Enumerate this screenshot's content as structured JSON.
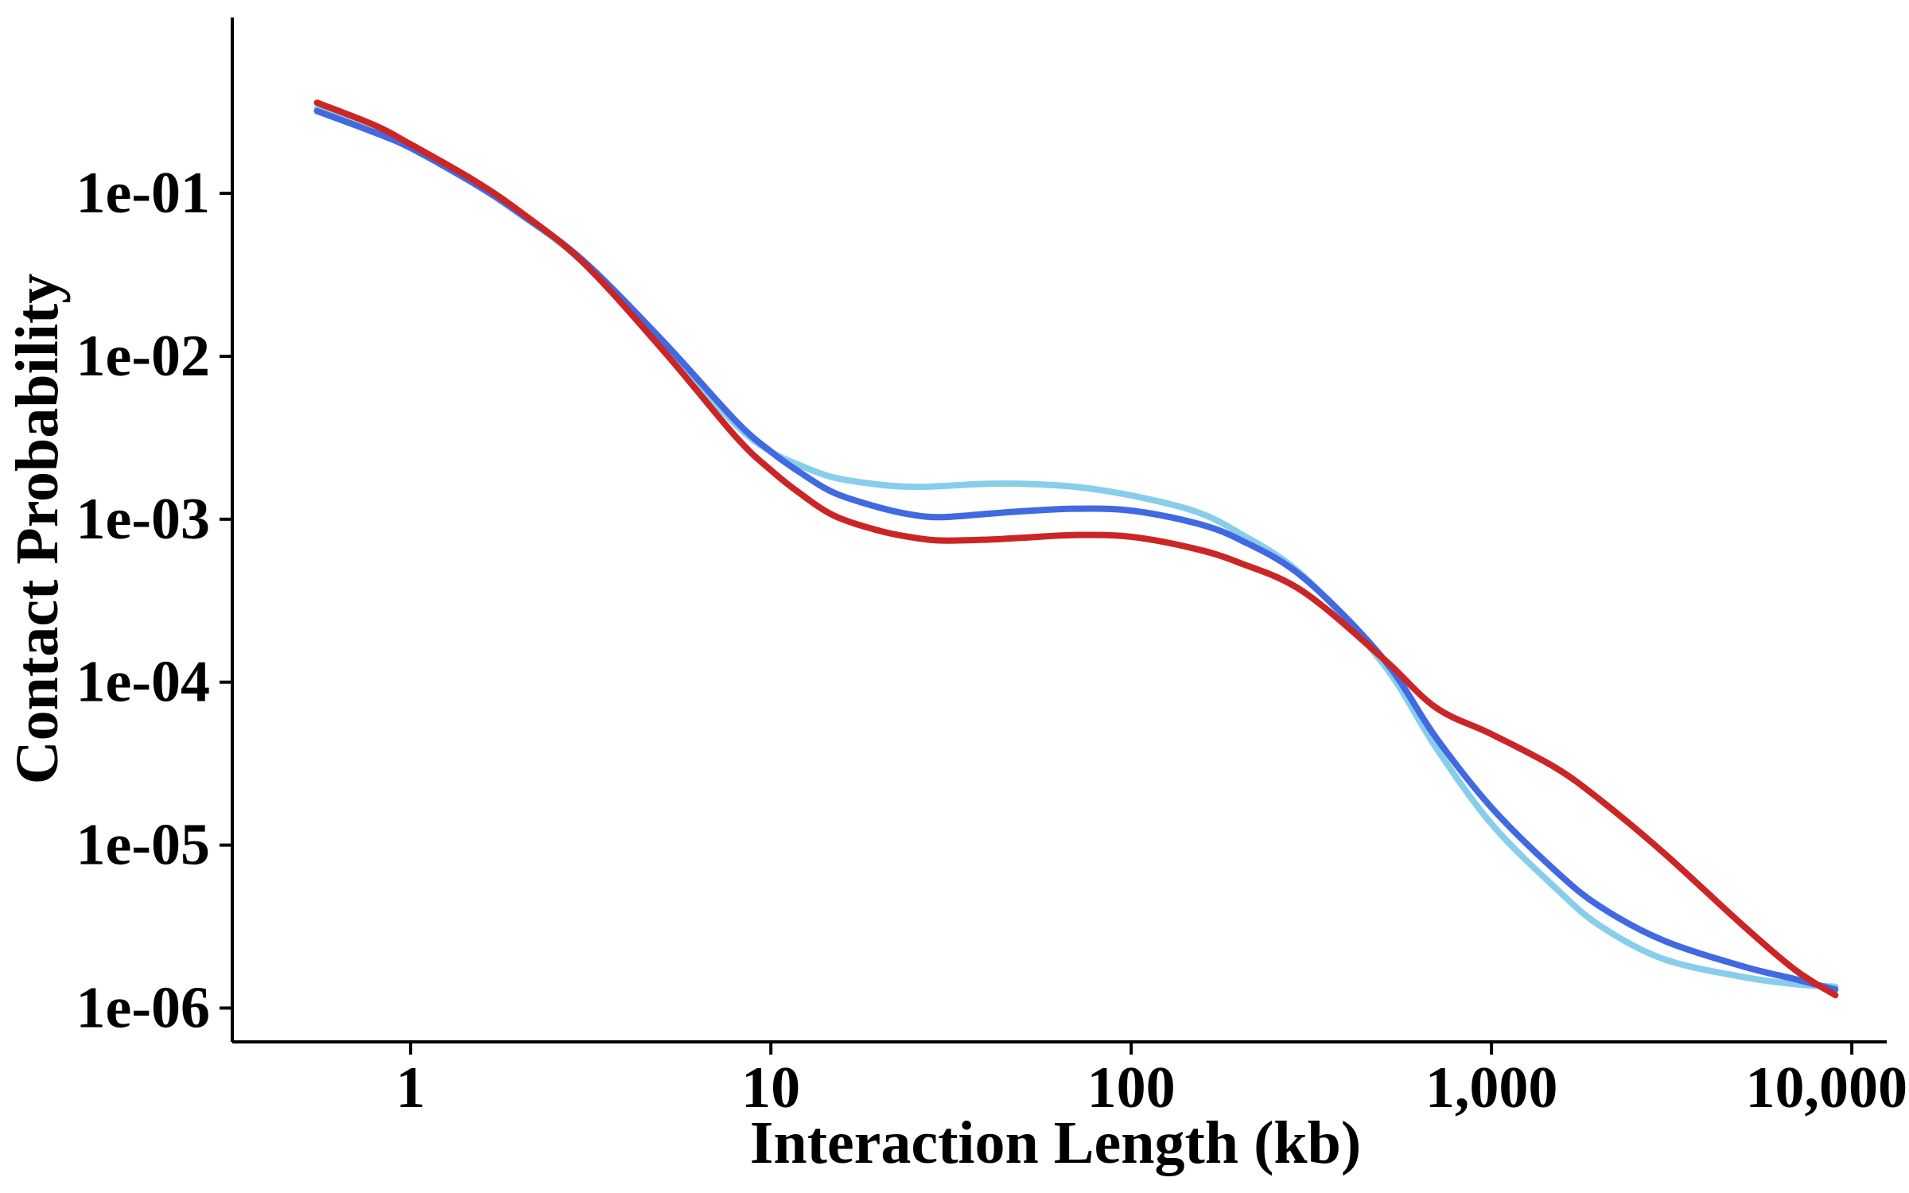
{
  "chart_data": {
    "type": "line",
    "title": "",
    "xlabel": "Interaction Length (kb)",
    "ylabel": "Contact Probability",
    "x_scale": "log",
    "y_scale": "log",
    "xlim": [
      0.32,
      12500
    ],
    "ylim": [
      6.2e-07,
      1.2
    ],
    "grid": false,
    "legend": "none",
    "x_ticks": [
      {
        "value": 1,
        "label": "1"
      },
      {
        "value": 10,
        "label": "10"
      },
      {
        "value": 100,
        "label": "100"
      },
      {
        "value": 1000,
        "label": "1,000"
      },
      {
        "value": 10000,
        "label": "10,000"
      }
    ],
    "y_ticks": [
      {
        "value": 0.1,
        "label": "1e-01"
      },
      {
        "value": 0.01,
        "label": "1e-02"
      },
      {
        "value": 0.001,
        "label": "1e-03"
      },
      {
        "value": 0.0001,
        "label": "1e-04"
      },
      {
        "value": 1e-05,
        "label": "1e-05"
      },
      {
        "value": 1e-06,
        "label": "1e-06"
      }
    ],
    "series": [
      {
        "color": "#87CEEB",
        "x": [
          0.55,
          0.8,
          1,
          1.5,
          2,
          3,
          5,
          8,
          10,
          12,
          15,
          20,
          25,
          30,
          40,
          50,
          70,
          100,
          150,
          200,
          300,
          500,
          700,
          1000,
          1500,
          2000,
          3000,
          5000,
          7000,
          9000
        ],
        "y": [
          0.33,
          0.235,
          0.19,
          0.115,
          0.075,
          0.038,
          0.0115,
          0.0038,
          0.0026,
          0.00215,
          0.0018,
          0.00163,
          0.00158,
          0.0016,
          0.00165,
          0.00165,
          0.00158,
          0.0014,
          0.00112,
          0.00082,
          0.00045,
          0.00013,
          4e-05,
          1.35e-05,
          5.5e-06,
          3.2e-06,
          2e-06,
          1.55e-06,
          1.4e-06,
          1.35e-06
        ]
      },
      {
        "color": "#4169E1",
        "x": [
          0.55,
          0.8,
          1,
          1.5,
          2,
          3,
          5,
          8,
          10,
          12,
          15,
          20,
          25,
          30,
          40,
          50,
          70,
          100,
          150,
          200,
          300,
          500,
          700,
          1000,
          1500,
          2000,
          3000,
          5000,
          7000,
          9000
        ],
        "y": [
          0.32,
          0.235,
          0.19,
          0.115,
          0.076,
          0.039,
          0.0125,
          0.004,
          0.0026,
          0.00195,
          0.00145,
          0.00118,
          0.00106,
          0.00103,
          0.00108,
          0.00112,
          0.00116,
          0.00113,
          0.00095,
          0.00075,
          0.00044,
          0.00014,
          4.6e-05,
          1.7e-05,
          7e-06,
          4.2e-06,
          2.6e-06,
          1.8e-06,
          1.5e-06,
          1.3e-06
        ]
      },
      {
        "color": "#CC2525",
        "x": [
          0.55,
          0.8,
          1,
          1.5,
          2,
          3,
          5,
          8,
          10,
          12,
          15,
          20,
          25,
          30,
          40,
          50,
          70,
          100,
          150,
          200,
          300,
          500,
          700,
          1000,
          1500,
          2000,
          3000,
          5000,
          7000,
          9000
        ],
        "y": [
          0.36,
          0.26,
          0.2,
          0.12,
          0.078,
          0.038,
          0.011,
          0.0032,
          0.002,
          0.00145,
          0.00105,
          0.00085,
          0.00077,
          0.00074,
          0.00075,
          0.00077,
          0.0008,
          0.00078,
          0.00066,
          0.00054,
          0.00036,
          0.00014,
          7e-05,
          4.8e-05,
          3e-05,
          1.9e-05,
          9e-06,
          3.2e-06,
          1.7e-06,
          1.2e-06
        ]
      }
    ]
  }
}
